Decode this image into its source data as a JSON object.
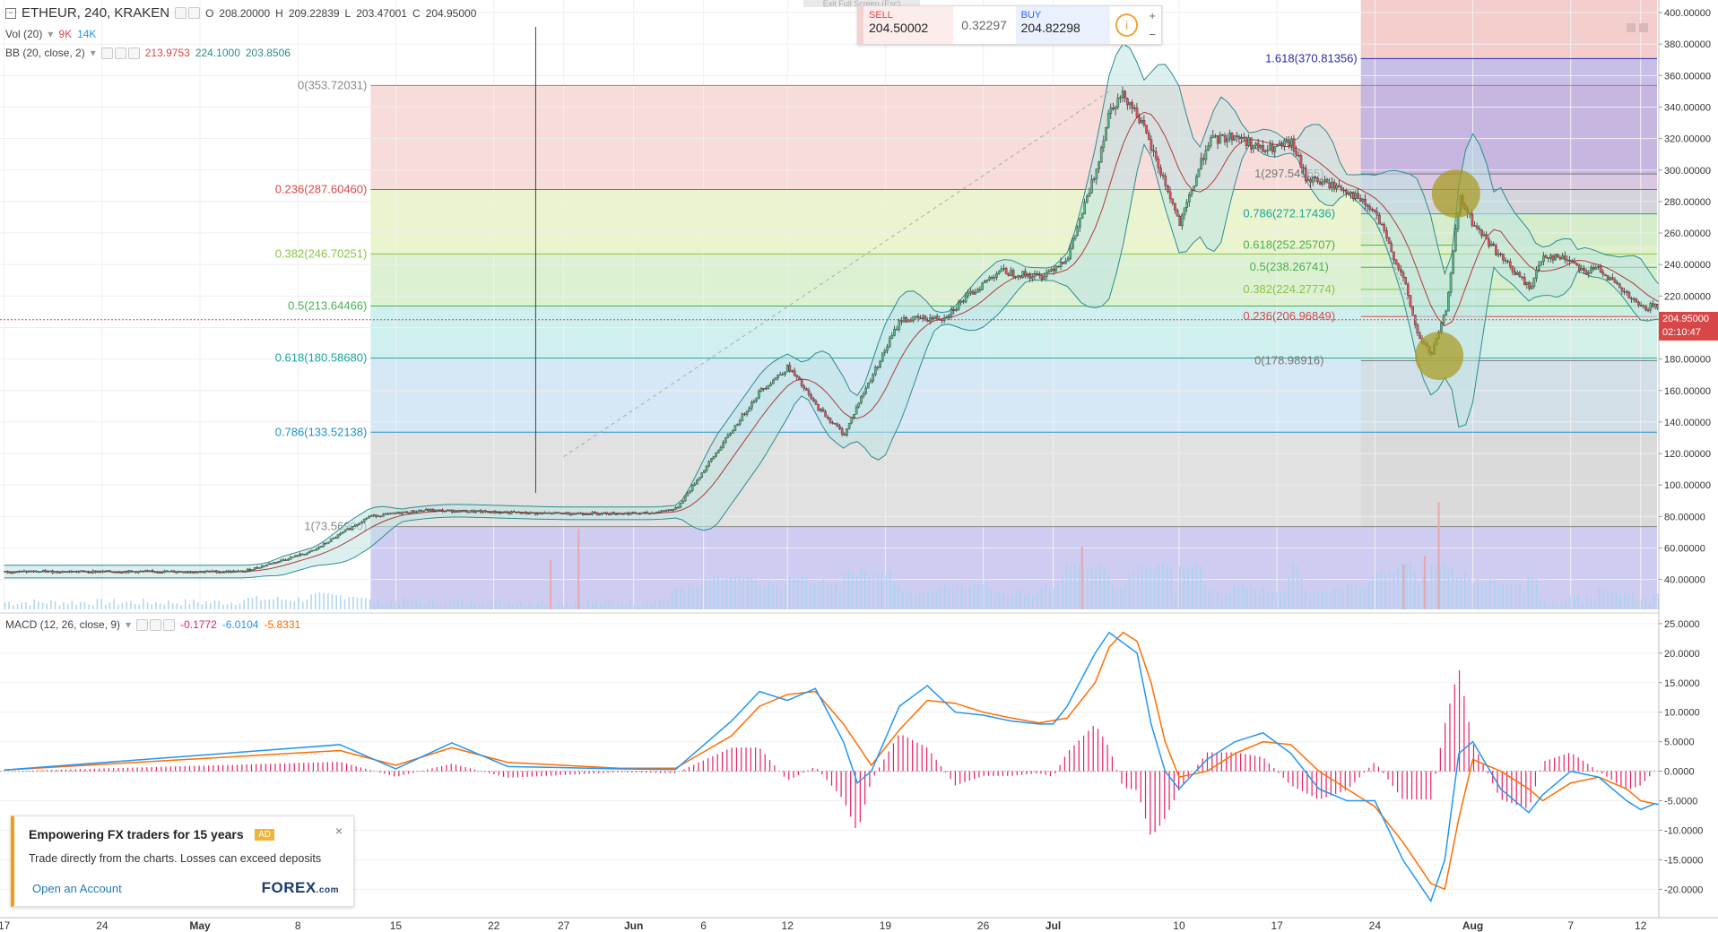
{
  "header": {
    "symbol_line": "ETHEUR, 240, KRAKEN",
    "ohlc": {
      "o_label": "O",
      "o": "208.20000",
      "h_label": "H",
      "h": "209.22839",
      "l_label": "L",
      "l": "203.47001",
      "c_label": "C",
      "c": "204.95000"
    },
    "vol_label": "Vol (20)",
    "vol_values": [
      "9K",
      "14K"
    ],
    "bb_label": "BB (20, close, 2)",
    "bb_values": [
      "213.9753",
      "224.1000",
      "203.8506"
    ],
    "macd_label": "MACD (12, 26, close, 9)",
    "macd_values": [
      "-0.1772",
      "-6.0104",
      "-5.8331"
    ]
  },
  "trade_panel": {
    "exit_hint": "Exit Full Screen (Esc)",
    "sell_label": "SELL",
    "sell_price": "204.50002",
    "spread": "0.32297",
    "buy_label": "BUY",
    "buy_price": "204.82298",
    "info_icon": "info-icon",
    "plus": "+",
    "minus": "−"
  },
  "price_badge": {
    "price": "204.95000",
    "countdown": "02:10:47"
  },
  "ad": {
    "title": "Empowering FX traders for 15 years",
    "badge": "AD",
    "description": "Trade directly from the charts. Losses can exceed deposits",
    "link": "Open an Account",
    "logo": "FOREX",
    "logo_suffix": ".com",
    "close": "×"
  },
  "colors": {
    "up": "#53b987",
    "down": "#eb4d5c",
    "bb": "#2e8b8b",
    "volume": "#a9d3ee",
    "macd_line": "#2196f3",
    "signal_line": "#ff6d00",
    "histogram": "#e91e63",
    "current_price": "#d84747"
  },
  "chart_data": [
    {
      "type": "candlestick",
      "title": "ETHEUR, 240, KRAKEN",
      "y_axis": {
        "range": [
          21,
          408
        ],
        "ticks": [
          "400.00000",
          "380.00000",
          "360.00000",
          "340.00000",
          "320.00000",
          "300.00000",
          "280.00000",
          "260.00000",
          "240.00000",
          "220.00000",
          "200.00000",
          "180.00000",
          "160.00000",
          "140.00000",
          "120.00000",
          "100.00000",
          "80.00000",
          "60.00000",
          "40.00000"
        ]
      },
      "x_axis": {
        "labels": [
          "17",
          "24",
          "May",
          "8",
          "15",
          "22",
          "27",
          "Jun",
          "6",
          "12",
          "19",
          "26",
          "Jul",
          "10",
          "17",
          "24",
          "Aug",
          "7",
          "12"
        ],
        "day_range": [
          -14.3,
          104.3
        ]
      },
      "price_path": [
        [
          -14,
          45
        ],
        [
          3,
          45
        ],
        [
          8,
          58
        ],
        [
          12,
          80
        ],
        [
          16,
          84
        ],
        [
          24,
          82
        ],
        [
          28,
          82
        ],
        [
          32,
          82
        ],
        [
          34,
          85
        ],
        [
          36,
          110
        ],
        [
          40,
          160
        ],
        [
          42,
          175
        ],
        [
          44,
          150
        ],
        [
          46,
          132
        ],
        [
          47,
          152
        ],
        [
          50,
          205
        ],
        [
          53,
          206
        ],
        [
          57,
          236
        ],
        [
          60,
          232
        ],
        [
          62,
          245
        ],
        [
          64,
          300
        ],
        [
          65,
          340
        ],
        [
          66,
          348
        ],
        [
          67,
          335
        ],
        [
          69,
          290
        ],
        [
          70,
          265
        ],
        [
          72,
          318
        ],
        [
          74,
          322
        ],
        [
          76,
          312
        ],
        [
          78,
          317
        ],
        [
          79,
          295
        ],
        [
          81,
          290
        ],
        [
          82,
          287
        ],
        [
          84,
          272
        ],
        [
          86,
          230
        ],
        [
          87,
          195
        ],
        [
          88,
          183
        ],
        [
          89,
          210
        ],
        [
          90,
          282
        ],
        [
          91,
          265
        ],
        [
          92,
          255
        ],
        [
          93,
          244
        ],
        [
          95,
          225
        ],
        [
          96,
          246
        ],
        [
          98,
          243
        ],
        [
          99,
          235
        ],
        [
          100,
          238
        ],
        [
          101,
          228
        ],
        [
          103,
          212
        ],
        [
          104,
          214
        ],
        [
          105,
          206
        ],
        [
          105.5,
          205
        ]
      ],
      "current_price": 204.95,
      "fib_retracement_1": {
        "anchor_low": 73.569,
        "anchor_high": 353.72031,
        "levels": [
          {
            "label": "1(73.56900)",
            "value": 73.569
          },
          {
            "label": "0.786(133.52138)",
            "value": 133.52138
          },
          {
            "label": "0.618(180.58680)",
            "value": 180.5868
          },
          {
            "label": "0.5(213.64466)",
            "value": 213.64466
          },
          {
            "label": "0.382(246.70251)",
            "value": 246.70251
          },
          {
            "label": "0.236(287.60460)",
            "value": 287.6046
          },
          {
            "label": "0(353.72031)",
            "value": 353.72031
          }
        ]
      },
      "fib_retracement_2": {
        "levels": [
          {
            "label": "1.618(370.81356)",
            "value": 370.81356
          },
          {
            "label": "1(297.54965)",
            "value": 297.54965
          },
          {
            "label": "0.786(272.17436)",
            "value": 272.17436
          },
          {
            "label": "0.618(252.25707)",
            "value": 252.25707
          },
          {
            "label": "0.5(238.26741)",
            "value": 238.26741
          },
          {
            "label": "0.382(224.27774)",
            "value": 224.27774
          },
          {
            "label": "0.236(206.96849)",
            "value": 206.96849
          },
          {
            "label": "0(178.98916)",
            "value": 178.98916
          }
        ]
      },
      "highlights": [
        {
          "day": 89.8,
          "price": 285
        },
        {
          "day": 88.6,
          "price": 182
        }
      ],
      "projection_sketch": [
        [
          104.5,
          205
        ],
        [
          107,
          209
        ],
        [
          109,
          219
        ],
        [
          110,
          207
        ],
        [
          111,
          184
        ],
        [
          113,
          190
        ],
        [
          115,
          207
        ],
        [
          117,
          193
        ],
        [
          119,
          184
        ],
        [
          121,
          205
        ],
        [
          124,
          218
        ],
        [
          126,
          197
        ],
        [
          127,
          176
        ],
        [
          128,
          166
        ],
        [
          129,
          174
        ],
        [
          131,
          185
        ],
        [
          133,
          201
        ],
        [
          135,
          178
        ],
        [
          137,
          151
        ],
        [
          139,
          160
        ],
        [
          141,
          163
        ],
        [
          143,
          138
        ]
      ]
    },
    {
      "type": "line",
      "title": "MACD (12, 26, close, 9)",
      "y_axis": {
        "range": [
          -24.5,
          26.5
        ],
        "ticks": [
          "25.0000",
          "20.0000",
          "15.0000",
          "10.0000",
          "5.0000",
          "0.0000",
          "-5.0000",
          "-10.0000",
          "-15.0000",
          "-20.0000"
        ]
      },
      "series": [
        {
          "name": "MACD",
          "points": [
            [
              -14,
              0.2
            ],
            [
              10,
              4.5
            ],
            [
              14,
              0.4
            ],
            [
              18,
              4.8
            ],
            [
              22,
              0.8
            ],
            [
              30,
              0.4
            ],
            [
              34,
              0.3
            ],
            [
              38,
              8.5
            ],
            [
              40,
              13.5
            ],
            [
              42,
              12
            ],
            [
              44,
              14
            ],
            [
              46,
              5
            ],
            [
              47,
              -2
            ],
            [
              48,
              0
            ],
            [
              50,
              11
            ],
            [
              52,
              14.5
            ],
            [
              54,
              10
            ],
            [
              56,
              9.5
            ],
            [
              58,
              8.5
            ],
            [
              60,
              8
            ],
            [
              61,
              8
            ],
            [
              62,
              11
            ],
            [
              64,
              20
            ],
            [
              65,
              23.5
            ],
            [
              67,
              20
            ],
            [
              68,
              8
            ],
            [
              69,
              0
            ],
            [
              70,
              -3
            ],
            [
              72,
              2
            ],
            [
              74,
              5
            ],
            [
              76,
              6.5
            ],
            [
              78,
              3
            ],
            [
              80,
              -3
            ],
            [
              82,
              -5
            ],
            [
              84,
              -5
            ],
            [
              86,
              -15
            ],
            [
              88,
              -22
            ],
            [
              89,
              -15
            ],
            [
              90,
              3
            ],
            [
              91,
              5
            ],
            [
              93,
              -3
            ],
            [
              95,
              -7
            ],
            [
              96,
              -4
            ],
            [
              98,
              0
            ],
            [
              100,
              -1
            ],
            [
              102,
              -5
            ],
            [
              103,
              -6.5
            ],
            [
              104,
              -5.5
            ],
            [
              105,
              -6
            ]
          ]
        },
        {
          "name": "Signal",
          "points": [
            [
              -14,
              0.2
            ],
            [
              10,
              3.5
            ],
            [
              14,
              1
            ],
            [
              18,
              4
            ],
            [
              22,
              1.5
            ],
            [
              30,
              0.5
            ],
            [
              34,
              0.5
            ],
            [
              38,
              6
            ],
            [
              40,
              11
            ],
            [
              42,
              13
            ],
            [
              44,
              13.5
            ],
            [
              46,
              8
            ],
            [
              48,
              1
            ],
            [
              50,
              7
            ],
            [
              52,
              12
            ],
            [
              54,
              11.5
            ],
            [
              56,
              10
            ],
            [
              58,
              9
            ],
            [
              60,
              8.2
            ],
            [
              62,
              9
            ],
            [
              64,
              15
            ],
            [
              65,
              21
            ],
            [
              66,
              23.5
            ],
            [
              67,
              22
            ],
            [
              68,
              15
            ],
            [
              69,
              5
            ],
            [
              70,
              -1
            ],
            [
              72,
              0
            ],
            [
              74,
              3
            ],
            [
              76,
              5
            ],
            [
              78,
              4.5
            ],
            [
              80,
              0
            ],
            [
              82,
              -3
            ],
            [
              84,
              -6
            ],
            [
              86,
              -12
            ],
            [
              88,
              -19
            ],
            [
              89,
              -20
            ],
            [
              90,
              -8
            ],
            [
              91,
              2
            ],
            [
              93,
              0
            ],
            [
              95,
              -3
            ],
            [
              96,
              -5
            ],
            [
              98,
              -2
            ],
            [
              100,
              -1
            ],
            [
              102,
              -3
            ],
            [
              103,
              -5
            ],
            [
              104,
              -5.5
            ],
            [
              105,
              -6
            ]
          ]
        }
      ]
    }
  ]
}
